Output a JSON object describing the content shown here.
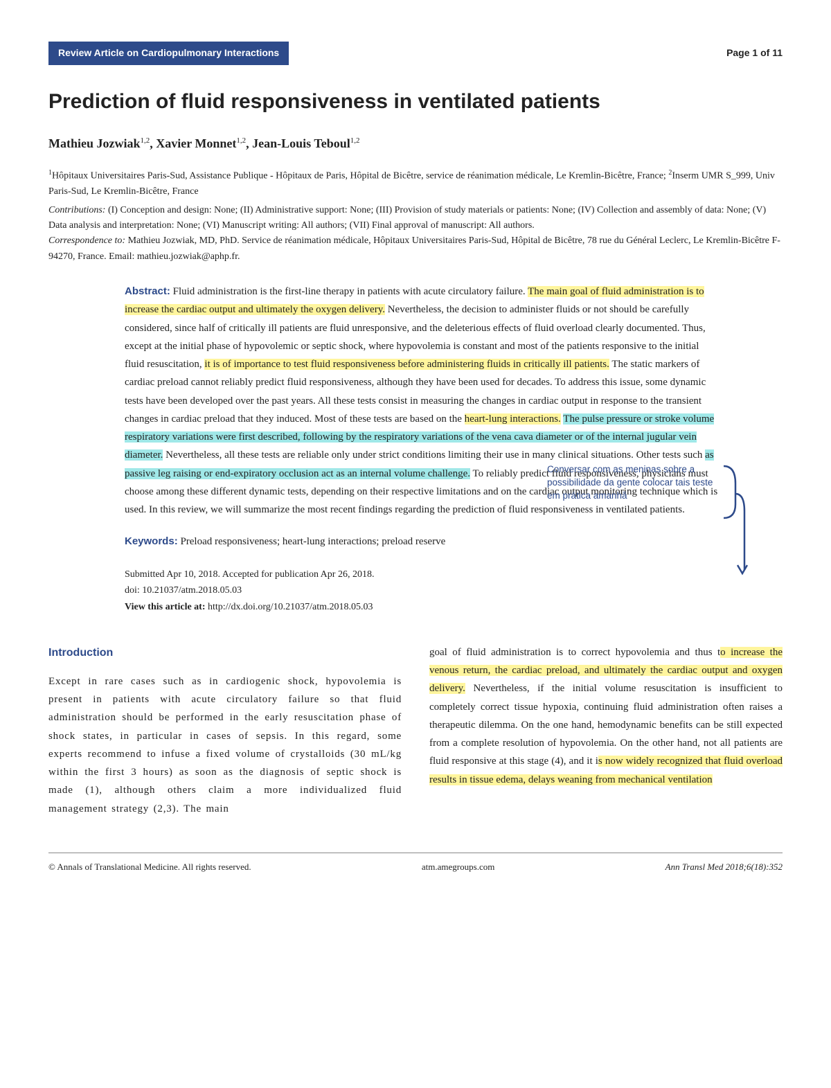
{
  "badge": "Review Article on Cardiopulmonary Interactions",
  "page_num": "Page 1 of 11",
  "title": "Prediction of fluid responsiveness in ventilated patients",
  "authors_html": "Mathieu Jozwiak<sup>1,2</sup>, Xavier Monnet<sup>1,2</sup>, Jean-Louis Teboul<sup>1,2</sup>",
  "affiliations": "<sup>1</sup>Hôpitaux Universitaires Paris-Sud, Assistance Publique - Hôpitaux de Paris, Hôpital de Bicêtre, service de réanimation médicale, Le Kremlin-Bicêtre, France; <sup>2</sup>Inserm UMR S_999, Univ Paris-Sud, Le Kremlin-Bicêtre, France",
  "contributions_label": "Contributions:",
  "contributions": " (I) Conception and design: None; (II) Administrative support: None; (III) Provision of study materials or patients: None; (IV) Collection and assembly of data: None; (V) Data analysis and interpretation: None; (VI) Manuscript writing: All authors; (VII) Final approval of manuscript: All authors.",
  "correspondence_label": "Correspondence to:",
  "correspondence": " Mathieu Jozwiak, MD, PhD. Service de réanimation médicale, Hôpitaux Universitaires Paris-Sud, Hôpital de Bicêtre, 78 rue du Général Leclerc, Le Kremlin-Bicêtre F-94270, France. Email: mathieu.jozwiak@aphp.fr.",
  "abstract_label": "Abstract:",
  "abstract": {
    "p1a": " Fluid administration is the first-line therapy in patients with acute circulatory failure. ",
    "hl1": "The main goal of fluid administration is to increase the cardiac output and ultimately the oxygen delivery.",
    "p1b": " Nevertheless, the decision to administer fluids or not should be carefully considered, since half of critically ill patients are fluid unresponsive, and the deleterious effects of fluid overload clearly documented. Thus, except at the initial phase of hypovolemic or septic shock, where hypovolemia is constant and most of the patients responsive to the initial fluid resuscitation, ",
    "hl2": "it is of importance to test fluid responsiveness before administering fluids in critically ill patients.",
    "p1c": " The static markers of cardiac preload cannot reliably predict fluid responsiveness, although they have been used for decades. To address this issue, some dynamic tests have been developed over the past years. All these tests consist in measuring the changes in cardiac output in response to the transient changes in cardiac preload that they induced. Most of these tests are based on the ",
    "hl3": "heart-lung interactions.",
    "p1d": " ",
    "hl4": "The pulse pressure or stroke volume respiratory variations were first described, following by the respiratory variations of the vena cava diameter or of the internal jugular vein diameter.",
    "p1e": " Nevertheless, all these tests are reliable only under strict conditions limiting their use in many clinical situations. Other tests such ",
    "hl5": "as passive leg raising or end-expiratory occlusion act as an internal volume challenge.",
    "p1f": " To reliably predict fluid responsiveness, physicians must choose among these different dynamic tests, depending on their respective limitations and on the cardiac output monitoring technique which is used. In this review, we will summarize the most recent findings regarding the prediction of fluid responsiveness in ventilated patients."
  },
  "keywords_label": "Keywords:",
  "keywords": " Preload responsiveness; heart-lung interactions; preload reserve",
  "note": "Conversar com as meninas  sobre a possibilidade da gente colocar tais teste em prática amanhã",
  "submitted": "Submitted Apr 10, 2018. Accepted for publication Apr 26, 2018.",
  "doi": "doi: 10.21037/atm.2018.05.03",
  "view_label": "View this article at:",
  "view_url": " http://dx.doi.org/10.21037/atm.2018.05.03",
  "intro_head": "Introduction",
  "col_left": "Except in rare cases such as in cardiogenic shock, hypovolemia is present in patients with acute circulatory failure so that fluid administration should be performed in the early resuscitation phase of shock states, in particular in cases of sepsis. In this regard, some experts recommend to infuse a fixed volume of crystalloids (30 mL/kg within the first 3 hours) as soon as the diagnosis of septic shock is made (1), although others claim a more individualized fluid management strategy (2,3). The main",
  "col_right": {
    "a": "goal of fluid administration is to correct hypovolemia and thus t",
    "hl1": "o increase the venous return, the cardiac preload, and ultimately the cardiac output and oxygen delivery.",
    "b": " Nevertheless, if the initial volume resuscitation is insufficient to completely correct tissue hypoxia, continuing fluid administration often raises a therapeutic dilemma. On the one hand, hemodynamic benefits can be still expected from a complete resolution of hypovolemia. On the other hand, not all patients are fluid responsive at this stage (4), and it i",
    "hl2": "s now widely recognized that fluid overload results in tissue edema, delays weaning from mechanical ventilation"
  },
  "footer": {
    "left": "© Annals of Translational Medicine. All rights reserved.",
    "center": "atm.amegroups.com",
    "right": "Ann Transl Med 2018;6(18):352"
  },
  "colors": {
    "brand": "#2d4a8a",
    "yellow": "#fff59d",
    "cyan": "#a0e8e8"
  }
}
